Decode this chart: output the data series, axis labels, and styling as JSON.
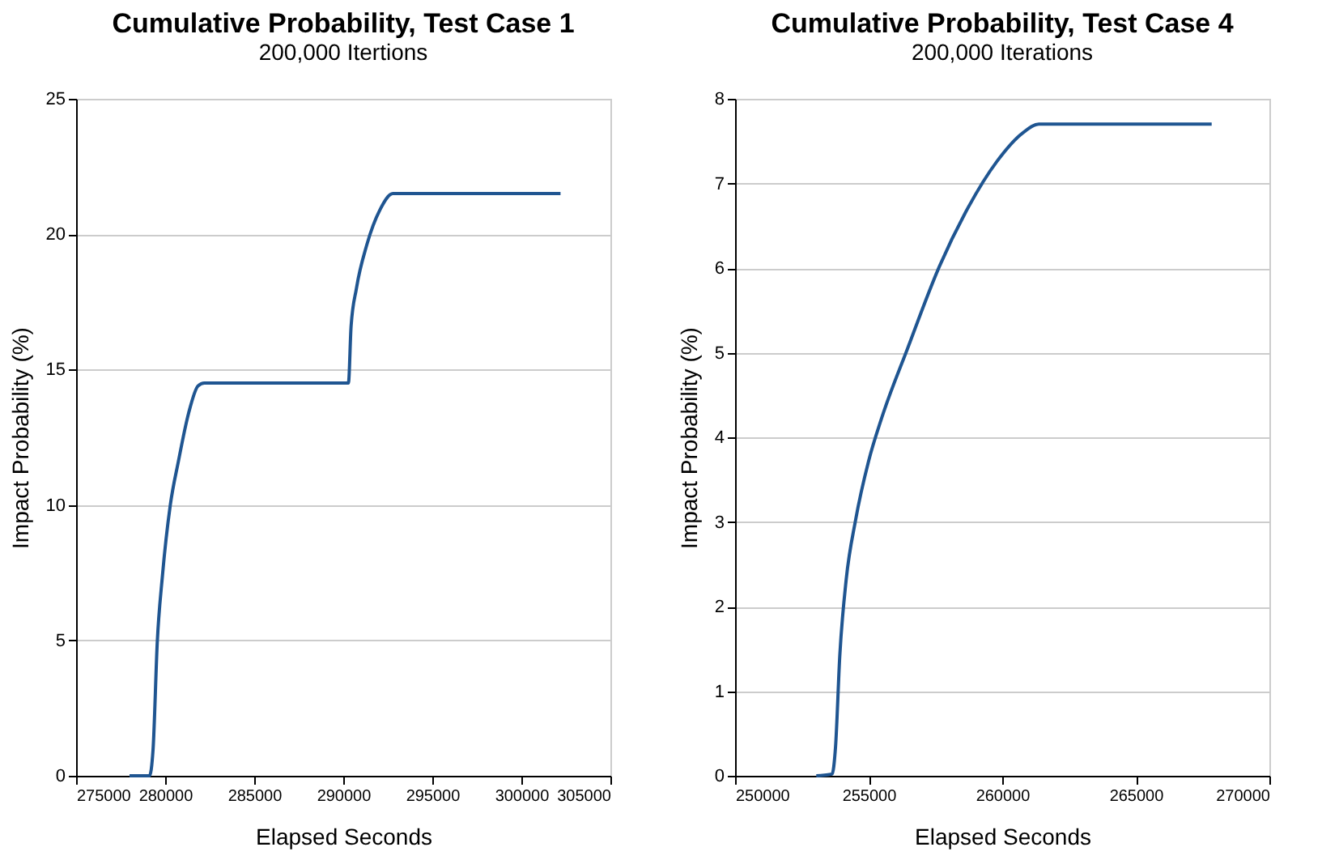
{
  "chart_data": [
    {
      "type": "line",
      "title": "Cumulative Probability, Test Case 1",
      "subtitle": "200,000 Itertions",
      "xlabel": "Elapsed Seconds",
      "ylabel": "Impact Probability (%)",
      "series": [
        {
          "color": "#1f5591",
          "x": [
            278000,
            279120,
            279320,
            279560,
            279850,
            280290,
            280740,
            281320,
            281850,
            282200,
            290290,
            290440,
            290740,
            291320,
            292060,
            292790,
            302200
          ],
          "values": [
            0,
            0,
            0.96,
            4.96,
            7.4,
            10,
            11.6,
            13.4,
            14.4,
            14.5,
            14.5,
            16.6,
            18,
            19.6,
            20.9,
            21.5,
            21.5
          ]
        }
      ],
      "xlim": [
        275000,
        305000
      ],
      "xticks": [
        275000,
        280000,
        285000,
        290000,
        295000,
        300000,
        305000
      ],
      "ylim": [
        0,
        25
      ],
      "yticks": [
        0,
        5,
        10,
        15,
        20,
        25
      ],
      "grid": "y",
      "marker": "none",
      "line_style": "solid"
    },
    {
      "type": "line",
      "title": "Cumulative Probability, Test Case 4",
      "subtitle": "200,000 Iterations",
      "xlabel": "Elapsed Seconds",
      "ylabel": "Impact Probability (%)",
      "series": [
        {
          "color": "#1f5591",
          "x": [
            253040,
            253630,
            253760,
            253920,
            254160,
            254510,
            255000,
            255490,
            256470,
            257650,
            258630,
            259800,
            260780,
            261370,
            267840
          ],
          "values": [
            0,
            0.02,
            0.34,
            1.42,
            2.32,
            3.02,
            3.72,
            4.23,
            5.06,
            6.02,
            6.66,
            7.26,
            7.6,
            7.7,
            7.7
          ]
        }
      ],
      "xlim": [
        250000,
        270000
      ],
      "xticks": [
        250000,
        255000,
        260000,
        265000,
        270000
      ],
      "ylim": [
        0,
        8
      ],
      "yticks": [
        0,
        1,
        2,
        3,
        4,
        5,
        6,
        7,
        8
      ],
      "grid": "y",
      "marker": "none",
      "line_style": "solid"
    }
  ]
}
